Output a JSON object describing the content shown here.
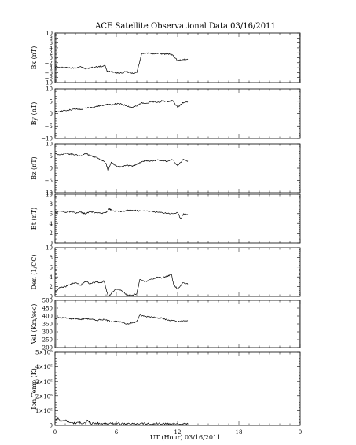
{
  "page": {
    "title": "ACE Satellite Observational Data   03/16/2011",
    "xaxis_label": "UT (Hour)   03/16/2011",
    "x_tick_labels": [
      "0",
      "6",
      "12",
      "18",
      "0"
    ]
  },
  "style": {
    "background": "#ffffff",
    "ink": "#000000"
  },
  "chart_data": [
    {
      "type": "line",
      "ylabel": "Bx (nT)",
      "ylim": [
        -10,
        10
      ],
      "y_ticks": [
        -10,
        -8,
        -6,
        -4,
        -2,
        0,
        2,
        4,
        6,
        8,
        10
      ],
      "y_tick_labels": [
        "−10",
        "−8",
        "−6",
        "−4",
        "−2",
        "0",
        "2",
        "4",
        "6",
        "8",
        "10"
      ],
      "xlim": [
        0,
        24
      ],
      "x": [
        0,
        0.5,
        1,
        1.5,
        2,
        2.5,
        3,
        3.5,
        4,
        4.5,
        4.9,
        5.1,
        5.5,
        6,
        6.5,
        7,
        7.5,
        8,
        8.2,
        8.5,
        9,
        9.5,
        10,
        10.5,
        11,
        11.5,
        12,
        12.5,
        13
      ],
      "values": [
        -3.5,
        -4,
        -3.8,
        -4.2,
        -4.0,
        -3.5,
        -4.5,
        -4.0,
        -3.7,
        -3.5,
        -3.2,
        -5.5,
        -5.5,
        -6.0,
        -6.2,
        -5.5,
        -6.3,
        -6.0,
        -3.0,
        1.8,
        2.0,
        1.5,
        1.8,
        1.6,
        1.5,
        1.2,
        -1.2,
        -0.8,
        -0.5
      ]
    },
    {
      "type": "line",
      "ylabel": "By (nT)",
      "ylim": [
        -10,
        10
      ],
      "y_ticks": [
        -10,
        -5,
        0,
        5,
        10
      ],
      "y_tick_labels": [
        "−10",
        "−5",
        "0",
        "5",
        "10"
      ],
      "xlim": [
        0,
        24
      ],
      "x": [
        0,
        0.5,
        1,
        1.5,
        2,
        2.5,
        3,
        3.5,
        4,
        4.5,
        5,
        5.5,
        6,
        6.5,
        7,
        7.5,
        8,
        8.5,
        9,
        9.5,
        10,
        10.5,
        11,
        11.5,
        12,
        12.5,
        13
      ],
      "values": [
        0.5,
        1.0,
        1.2,
        1.5,
        1.8,
        1.6,
        2.2,
        2.5,
        2.8,
        3.2,
        3.8,
        3.5,
        4.0,
        3.8,
        3.2,
        2.5,
        3.0,
        4.5,
        4.2,
        4.8,
        4.5,
        5.2,
        4.8,
        5.3,
        2.5,
        4.5,
        4.8
      ]
    },
    {
      "type": "line",
      "ylabel": "Bz (nT)",
      "ylim": [
        -10,
        10
      ],
      "y_ticks": [
        -10,
        -5,
        0,
        5,
        10
      ],
      "y_tick_labels": [
        "−10",
        "−5",
        "0",
        "5",
        "10"
      ],
      "xlim": [
        0,
        24
      ],
      "x": [
        0,
        0.5,
        1,
        1.5,
        2,
        2.5,
        3,
        3.5,
        4,
        4.5,
        5,
        5.2,
        5.5,
        6,
        6.5,
        7,
        7.5,
        8,
        8.5,
        9,
        9.5,
        10,
        10.5,
        11,
        11.5,
        12,
        12.5,
        13
      ],
      "values": [
        6.0,
        5.5,
        6.2,
        5.8,
        5.5,
        5.0,
        6.0,
        5.2,
        4.5,
        3.5,
        2.0,
        -1.0,
        2.5,
        1.0,
        0.5,
        1.2,
        1.0,
        1.5,
        2.8,
        3.2,
        3.0,
        3.4,
        3.2,
        2.8,
        3.5,
        1.0,
        3.5,
        3.0
      ]
    },
    {
      "type": "line",
      "ylabel": "Bt (nT)",
      "ylim": [
        0,
        10
      ],
      "y_ticks": [
        0,
        2,
        4,
        6,
        8,
        10
      ],
      "y_tick_labels": [
        "0",
        "2",
        "4",
        "6",
        "8",
        "10"
      ],
      "xlim": [
        0,
        24
      ],
      "x": [
        0,
        0.5,
        1,
        1.5,
        2,
        2.5,
        3,
        3.5,
        4,
        4.5,
        5,
        5.3,
        5.6,
        6,
        6.5,
        7,
        7.5,
        8,
        8.5,
        9,
        9.5,
        10,
        10.5,
        11,
        11.5,
        12,
        12.3,
        12.6,
        13
      ],
      "values": [
        6.2,
        6.5,
        6.3,
        6.4,
        6.1,
        6.3,
        6.0,
        6.4,
        6.2,
        6.0,
        6.3,
        7.0,
        6.6,
        6.5,
        6.4,
        6.6,
        6.7,
        6.6,
        6.5,
        6.6,
        6.4,
        6.3,
        6.2,
        6.1,
        6.0,
        6.2,
        5.0,
        6.0,
        5.8
      ]
    },
    {
      "type": "line",
      "ylabel": "Den (1/CC)",
      "ylim": [
        0,
        10
      ],
      "y_ticks": [
        0,
        2,
        4,
        6,
        8,
        10
      ],
      "y_tick_labels": [
        "0",
        "2",
        "4",
        "6",
        "8",
        "10"
      ],
      "xlim": [
        0,
        24
      ],
      "x": [
        0,
        0.5,
        1,
        1.5,
        2,
        2.5,
        3,
        3.5,
        4,
        4.5,
        4.8,
        5.2,
        5.6,
        6,
        6.5,
        7,
        7.5,
        8,
        8.3,
        8.8,
        9.5,
        10,
        10.5,
        11,
        11.4,
        11.6,
        12,
        12.5,
        13
      ],
      "values": [
        1.0,
        1.8,
        2.0,
        2.5,
        2.8,
        2.3,
        3.0,
        2.6,
        3.0,
        2.8,
        3.2,
        0.0,
        0.8,
        1.5,
        1.2,
        0.3,
        0.2,
        0.5,
        3.5,
        3.0,
        3.5,
        4.0,
        3.8,
        4.2,
        4.5,
        2.5,
        1.5,
        2.8,
        2.5
      ]
    },
    {
      "type": "line",
      "ylabel": "Vel (Km/sec)",
      "ylim": [
        200,
        500
      ],
      "y_ticks": [
        200,
        250,
        300,
        350,
        400,
        450,
        500
      ],
      "y_tick_labels": [
        "200",
        "250",
        "300",
        "350",
        "400",
        "450",
        "500"
      ],
      "xlim": [
        0,
        24
      ],
      "x": [
        0,
        0.5,
        1,
        1.5,
        2,
        2.5,
        3,
        3.5,
        4,
        4.5,
        5,
        5.5,
        6,
        6.5,
        7,
        7.5,
        8,
        8.3,
        8.8,
        9.5,
        10,
        10.5,
        11,
        11.5,
        12,
        12.5,
        13
      ],
      "values": [
        385,
        390,
        388,
        383,
        385,
        378,
        385,
        380,
        372,
        378,
        375,
        365,
        368,
        360,
        350,
        355,
        365,
        405,
        398,
        395,
        390,
        385,
        375,
        372,
        362,
        368,
        370
      ]
    },
    {
      "type": "line",
      "ylabel": "Ion Temp (K)",
      "ylim": [
        0,
        500000
      ],
      "y_ticks": [
        0,
        100000,
        200000,
        300000,
        400000,
        500000
      ],
      "y_tick_labels": [
        "0",
        "1×10⁵",
        "2×10⁵",
        "3×10⁵",
        "4×10⁵",
        "5×10⁵"
      ],
      "xlim": [
        0,
        24
      ],
      "x": [
        0,
        0.3,
        0.6,
        1,
        1.5,
        2,
        2.5,
        3,
        3.2,
        3.5,
        4,
        4.5,
        5,
        5.5,
        6,
        6.5,
        7,
        7.5,
        8,
        8.5,
        9,
        9.5,
        10,
        10.5,
        11,
        11.5,
        12,
        12.5,
        13
      ],
      "values": [
        30000,
        50000,
        25000,
        35000,
        20000,
        15000,
        18000,
        15000,
        35000,
        12000,
        15000,
        12000,
        10000,
        12000,
        15000,
        10000,
        8000,
        10000,
        12000,
        15000,
        10000,
        8000,
        12000,
        10000,
        8000,
        12000,
        10000,
        8000,
        10000
      ]
    }
  ]
}
